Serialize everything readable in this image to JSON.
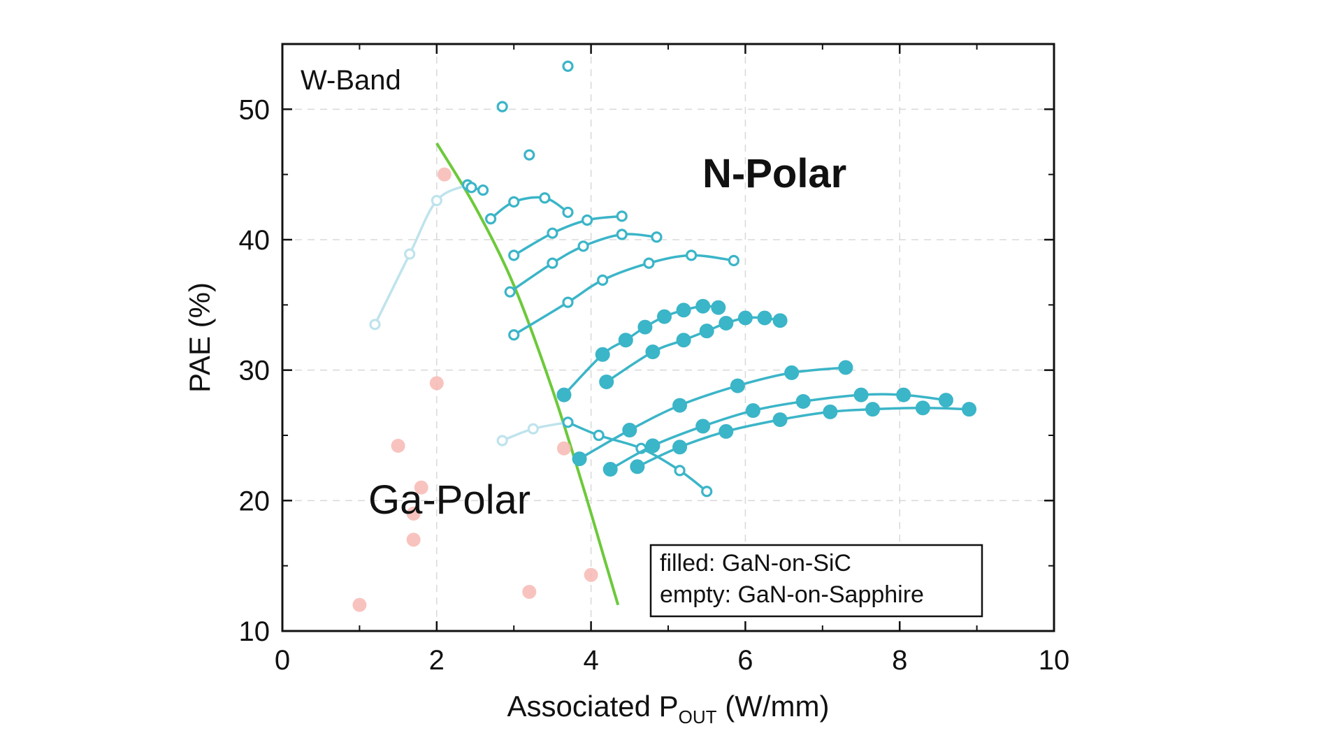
{
  "chart_data": {
    "type": "scatter",
    "title": "",
    "xlabel": "Associated P",
    "xlabel_sub": "OUT",
    "xlabel_unit": " (W/mm)",
    "ylabel": "PAE (%)",
    "xlim": [
      0,
      10
    ],
    "ylim": [
      10,
      55
    ],
    "x_ticks": [
      0,
      2,
      4,
      6,
      8,
      10
    ],
    "y_ticks": [
      10,
      20,
      30,
      40,
      50
    ],
    "grid": true,
    "annotations": {
      "band": "W-Band",
      "n_polar": "N-Polar",
      "ga_polar": "Ga-Polar"
    },
    "legend": {
      "position": "bottom-right",
      "filled": "filled: GaN-on-SiC",
      "empty": "empty: GaN-on-Sapphire"
    },
    "colors": {
      "n_polar": "#3bb5c8",
      "n_polar_faint": "#bfe3ec",
      "ga_polar": "#f7b9b3",
      "boundary": "#6cc93a"
    },
    "boundary_curve": {
      "name": "Ga-Polar / N-Polar boundary",
      "points": [
        [
          2.0,
          47.4
        ],
        [
          2.5,
          42.5
        ],
        [
          3.0,
          36.5
        ],
        [
          3.5,
          28.5
        ],
        [
          3.9,
          21.0
        ],
        [
          4.2,
          15.0
        ],
        [
          4.35,
          12.0
        ]
      ]
    },
    "ga_polar_points": [
      {
        "x": 2.1,
        "y": 45.0
      },
      {
        "x": 2.0,
        "y": 29.0
      },
      {
        "x": 1.5,
        "y": 24.2
      },
      {
        "x": 1.8,
        "y": 21.0
      },
      {
        "x": 1.7,
        "y": 19.0
      },
      {
        "x": 1.7,
        "y": 17.0
      },
      {
        "x": 1.0,
        "y": 12.0
      },
      {
        "x": 3.2,
        "y": 13.0
      },
      {
        "x": 3.65,
        "y": 24.0
      },
      {
        "x": 4.0,
        "y": 14.3
      }
    ],
    "n_polar_series": [
      {
        "name": "Sapphire single 1",
        "filled": false,
        "faint": false,
        "points": [
          [
            3.7,
            53.3
          ]
        ]
      },
      {
        "name": "Sapphire single 2",
        "filled": false,
        "faint": false,
        "points": [
          [
            2.85,
            50.2
          ]
        ]
      },
      {
        "name": "Sapphire single 3",
        "filled": false,
        "faint": false,
        "points": [
          [
            3.2,
            46.5
          ]
        ]
      },
      {
        "name": "Sapphire faint A",
        "filled": false,
        "faint": true,
        "points": [
          [
            1.2,
            33.5
          ],
          [
            1.65,
            38.9
          ],
          [
            2.0,
            43.0
          ],
          [
            2.4,
            44.2
          ]
        ]
      },
      {
        "name": "Sapphire A",
        "filled": false,
        "faint": false,
        "points": [
          [
            2.4,
            44.2
          ],
          [
            2.45,
            44.0
          ],
          [
            2.6,
            43.8
          ]
        ]
      },
      {
        "name": "Sapphire B",
        "filled": false,
        "faint": false,
        "points": [
          [
            2.7,
            41.6
          ],
          [
            3.0,
            42.9
          ],
          [
            3.4,
            43.2
          ],
          [
            3.7,
            42.1
          ]
        ]
      },
      {
        "name": "Sapphire C",
        "filled": false,
        "faint": false,
        "points": [
          [
            3.0,
            38.8
          ],
          [
            3.5,
            40.5
          ],
          [
            3.95,
            41.5
          ],
          [
            4.4,
            41.8
          ]
        ]
      },
      {
        "name": "Sapphire D",
        "filled": false,
        "faint": false,
        "points": [
          [
            2.95,
            36.0
          ],
          [
            3.5,
            38.2
          ],
          [
            3.9,
            39.5
          ],
          [
            4.4,
            40.4
          ],
          [
            4.85,
            40.2
          ]
        ]
      },
      {
        "name": "Sapphire E",
        "filled": false,
        "faint": false,
        "points": [
          [
            3.0,
            32.7
          ],
          [
            3.7,
            35.2
          ],
          [
            4.15,
            36.9
          ],
          [
            4.75,
            38.2
          ],
          [
            5.3,
            38.8
          ],
          [
            5.85,
            38.4
          ]
        ]
      },
      {
        "name": "Sapphire faint F",
        "filled": false,
        "faint": true,
        "points": [
          [
            2.85,
            24.6
          ],
          [
            3.25,
            25.5
          ],
          [
            3.7,
            26.0
          ]
        ]
      },
      {
        "name": "Sapphire F",
        "filled": false,
        "faint": false,
        "points": [
          [
            3.7,
            26.0
          ],
          [
            4.1,
            25.0
          ],
          [
            4.65,
            24.0
          ],
          [
            5.15,
            22.3
          ],
          [
            5.5,
            20.7
          ]
        ]
      },
      {
        "name": "SiC A",
        "filled": true,
        "faint": false,
        "points": [
          [
            3.65,
            28.1
          ],
          [
            4.15,
            31.2
          ],
          [
            4.45,
            32.3
          ],
          [
            4.7,
            33.3
          ],
          [
            4.95,
            34.1
          ],
          [
            5.2,
            34.6
          ],
          [
            5.45,
            34.9
          ],
          [
            5.65,
            34.8
          ]
        ]
      },
      {
        "name": "SiC B",
        "filled": true,
        "faint": false,
        "points": [
          [
            4.2,
            29.1
          ],
          [
            4.8,
            31.4
          ],
          [
            5.2,
            32.3
          ],
          [
            5.5,
            33.0
          ],
          [
            5.75,
            33.6
          ],
          [
            6.0,
            34.0
          ],
          [
            6.25,
            34.0
          ],
          [
            6.45,
            33.8
          ]
        ]
      },
      {
        "name": "SiC C",
        "filled": true,
        "faint": false,
        "points": [
          [
            3.85,
            23.2
          ],
          [
            4.5,
            25.4
          ],
          [
            5.15,
            27.3
          ],
          [
            5.9,
            28.8
          ],
          [
            6.6,
            29.8
          ],
          [
            7.3,
            30.2
          ]
        ]
      },
      {
        "name": "SiC D",
        "filled": true,
        "faint": false,
        "points": [
          [
            4.25,
            22.4
          ],
          [
            4.8,
            24.2
          ],
          [
            5.45,
            25.7
          ],
          [
            6.1,
            26.9
          ],
          [
            6.75,
            27.6
          ],
          [
            7.5,
            28.1
          ],
          [
            8.05,
            28.1
          ],
          [
            8.6,
            27.7
          ]
        ]
      },
      {
        "name": "SiC E",
        "filled": true,
        "faint": false,
        "points": [
          [
            4.6,
            22.6
          ],
          [
            5.15,
            24.1
          ],
          [
            5.75,
            25.3
          ],
          [
            6.45,
            26.2
          ],
          [
            7.1,
            26.8
          ],
          [
            7.65,
            27.0
          ],
          [
            8.3,
            27.1
          ],
          [
            8.9,
            27.0
          ]
        ]
      }
    ]
  }
}
